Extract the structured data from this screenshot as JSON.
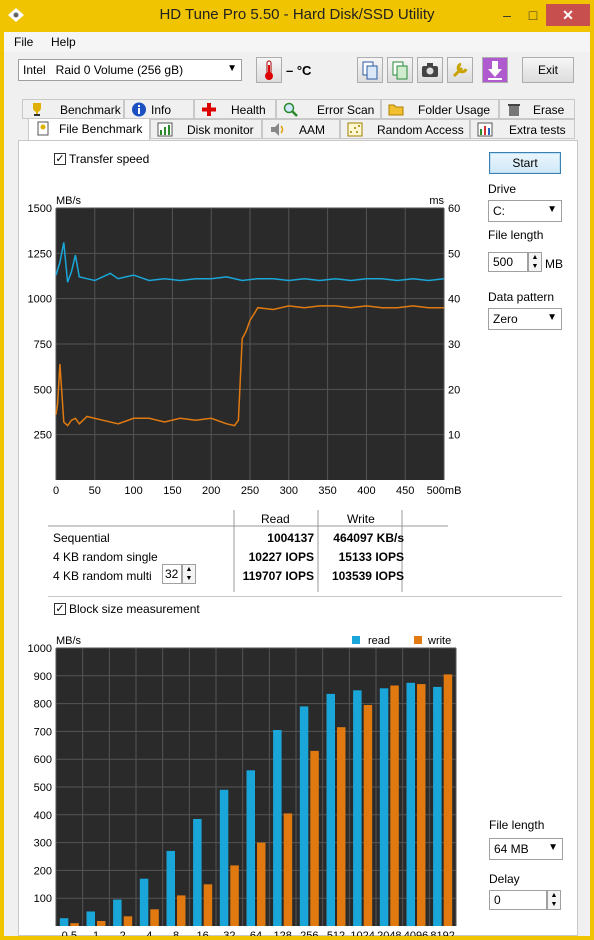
{
  "window": {
    "title": "HD Tune Pro 5.50 - Hard Disk/SSD Utility",
    "minimize": "–",
    "maximize": "□",
    "close": "✕"
  },
  "menu": {
    "file": "File",
    "help": "Help"
  },
  "toolbar": {
    "drive_selected": "Intel   Raid 0 Volume (256 gB)",
    "temperature": "– °C",
    "exit_label": "Exit"
  },
  "tabs_top": [
    "Benchmark",
    "Info",
    "Health",
    "Error Scan",
    "Folder Usage",
    "Erase"
  ],
  "tabs_bottom": [
    "File Benchmark",
    "Disk monitor",
    "AAM",
    "Random Access",
    "Extra tests"
  ],
  "active_tab": "File Benchmark",
  "transfer": {
    "checkbox_label": "Transfer speed",
    "checked": true,
    "y_unit": "MB/s",
    "y2_unit": "ms",
    "y_ticks": [
      "1500",
      "1250",
      "1000",
      "750",
      "500",
      "250"
    ],
    "y2_ticks": [
      "60",
      "50",
      "40",
      "30",
      "20",
      "10"
    ],
    "x_ticks": [
      "0",
      "50",
      "100",
      "150",
      "200",
      "250",
      "300",
      "350",
      "400",
      "450",
      "500mB"
    ]
  },
  "results": {
    "col_read": "Read",
    "col_write": "Write",
    "rows": [
      {
        "label": "Sequential",
        "read": "1004137",
        "write": "464097 KB/s"
      },
      {
        "label": "4 KB random single",
        "read": "10227 IOPS",
        "write": "15133 IOPS"
      },
      {
        "label": "4 KB random multi",
        "read": "119707 IOPS",
        "write": "103539 IOPS"
      }
    ],
    "queue_depth": "32"
  },
  "side": {
    "start_label": "Start",
    "drive_label": "Drive",
    "drive_value": "C:",
    "file_length_label": "File length",
    "file_length_value": "500",
    "file_length_unit": "MB",
    "data_pattern_label": "Data pattern",
    "data_pattern_value": "Zero"
  },
  "block": {
    "checkbox_label": "Block size measurement",
    "checked": true,
    "y_unit": "MB/s",
    "legend_read": "read",
    "legend_write": "write",
    "y_ticks": [
      "1000",
      "900",
      "800",
      "700",
      "600",
      "500",
      "400",
      "300",
      "200",
      "100"
    ],
    "file_length_label": "File length",
    "file_length_value": "64 MB",
    "delay_label": "Delay",
    "delay_value": "0"
  },
  "colors": {
    "read": "#1aa6d8",
    "write": "#e07a10",
    "chart_bg": "#2a2a2a",
    "grid": "#555555"
  },
  "chart_data": [
    {
      "type": "line",
      "title": "Transfer speed",
      "xlabel": "mB",
      "ylabel": "MB/s",
      "y2label": "ms",
      "xlim": [
        0,
        500
      ],
      "ylim": [
        0,
        1500
      ],
      "grid": true,
      "series": [
        {
          "name": "read",
          "color": "#1aa6d8",
          "x": [
            0,
            5,
            10,
            15,
            20,
            25,
            30,
            40,
            50,
            60,
            70,
            80,
            90,
            100,
            120,
            140,
            160,
            180,
            200,
            220,
            240,
            260,
            280,
            300,
            320,
            340,
            360,
            380,
            400,
            420,
            440,
            460,
            480,
            500
          ],
          "y": [
            1130,
            1200,
            1310,
            1090,
            1150,
            1240,
            1120,
            1110,
            1100,
            1120,
            1140,
            1110,
            1120,
            1130,
            1100,
            1110,
            1100,
            1110,
            1110,
            1120,
            1100,
            1110,
            1110,
            1100,
            1110,
            1100,
            1110,
            1100,
            1110,
            1110,
            1100,
            1110,
            1100,
            1110
          ]
        },
        {
          "name": "write",
          "color": "#e07a10",
          "x": [
            0,
            2,
            5,
            10,
            15,
            20,
            25,
            30,
            40,
            60,
            80,
            100,
            120,
            140,
            160,
            180,
            200,
            220,
            230,
            235,
            240,
            245,
            250,
            260,
            280,
            300,
            320,
            340,
            360,
            380,
            400,
            420,
            440,
            460,
            480,
            500
          ],
          "y": [
            360,
            420,
            640,
            320,
            300,
            330,
            340,
            310,
            350,
            330,
            310,
            340,
            340,
            320,
            340,
            330,
            340,
            310,
            300,
            330,
            780,
            820,
            880,
            950,
            940,
            960,
            950,
            960,
            960,
            950,
            960,
            950,
            950,
            960,
            950,
            950
          ]
        }
      ]
    },
    {
      "type": "bar",
      "title": "Block size measurement",
      "ylabel": "MB/s",
      "ylim": [
        0,
        1000
      ],
      "categories": [
        "0.5",
        "1",
        "2",
        "4",
        "8",
        "16",
        "32",
        "64",
        "128",
        "256",
        "512",
        "1024",
        "2048",
        "4096",
        "8192"
      ],
      "legend": "top-right",
      "series": [
        {
          "name": "read",
          "color": "#1aa6d8",
          "values": [
            28,
            52,
            95,
            170,
            270,
            385,
            490,
            560,
            705,
            790,
            835,
            848,
            855,
            875,
            860
          ]
        },
        {
          "name": "write",
          "color": "#e07a10",
          "values": [
            10,
            18,
            35,
            60,
            110,
            150,
            218,
            300,
            405,
            630,
            715,
            795,
            865,
            870,
            905
          ]
        }
      ]
    }
  ]
}
